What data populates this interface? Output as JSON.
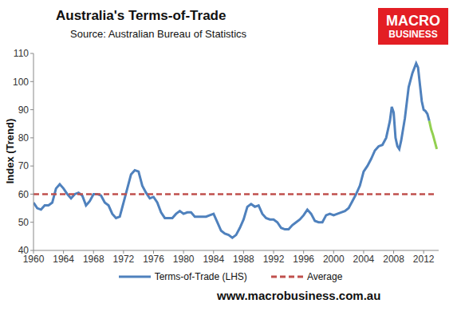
{
  "chart_data": {
    "type": "line",
    "title": "Australia's Terms-of-Trade",
    "subtitle": "Source: Australian Bureau of Statistics",
    "y_label": "Index (Trend)",
    "logo": [
      "MACRO",
      "BUSINESS"
    ],
    "footer": "www.macrobusiness.com.au",
    "xlim": [
      1960,
      2014
    ],
    "xticks": [
      1960,
      1964,
      1968,
      1972,
      1976,
      1980,
      1984,
      1988,
      1992,
      1996,
      2000,
      2004,
      2008,
      2012
    ],
    "ylim": [
      40,
      110
    ],
    "yticks": [
      40,
      50,
      60,
      70,
      80,
      90,
      100,
      110
    ],
    "grid": false,
    "legend": "bottom",
    "series": [
      {
        "name": "Terms-of-Trade (LHS)",
        "color": "#4f81bd",
        "line_style": "solid",
        "x": [
          1960,
          1960.5,
          1961,
          1961.5,
          1962,
          1962.5,
          1963,
          1963.5,
          1964,
          1964.5,
          1965,
          1965.5,
          1966,
          1966.5,
          1967,
          1967.5,
          1968,
          1968.5,
          1969,
          1969.5,
          1970,
          1970.5,
          1971,
          1971.5,
          1972,
          1972.5,
          1973,
          1973.5,
          1974,
          1974.5,
          1975,
          1975.5,
          1976,
          1976.5,
          1977,
          1977.5,
          1978,
          1978.5,
          1979,
          1979.5,
          1980,
          1980.5,
          1981,
          1981.5,
          1982,
          1982.5,
          1983,
          1983.5,
          1984,
          1984.5,
          1985,
          1985.5,
          1986,
          1986.5,
          1987,
          1987.5,
          1988,
          1988.5,
          1989,
          1989.5,
          1990,
          1990.5,
          1991,
          1991.5,
          1992,
          1992.5,
          1993,
          1993.5,
          1994,
          1994.5,
          1995,
          1995.5,
          1996,
          1996.5,
          1997,
          1997.5,
          1998,
          1998.5,
          1999,
          1999.5,
          2000,
          2000.5,
          2001,
          2001.5,
          2002,
          2002.5,
          2003,
          2003.5,
          2004,
          2004.5,
          2005,
          2005.5,
          2006,
          2006.5,
          2007,
          2007.5,
          2007.75,
          2008,
          2008.25,
          2008.5,
          2008.75,
          2009,
          2009.5,
          2010,
          2010.5,
          2011,
          2011.25,
          2011.5,
          2011.75,
          2012,
          2012.25,
          2012.5,
          2012.75
        ],
        "values": [
          57,
          55,
          54.5,
          56,
          56,
          57,
          62,
          63.5,
          62,
          60,
          58.5,
          60,
          60.5,
          59.5,
          56,
          57.5,
          60,
          60,
          59.5,
          57,
          56,
          53,
          51.5,
          52,
          57,
          62,
          67,
          68.5,
          68,
          63,
          60.5,
          58.5,
          59,
          57,
          53.5,
          51.5,
          51.5,
          51.5,
          53,
          54,
          53,
          53.5,
          53.5,
          52,
          52,
          52,
          52,
          52.5,
          53,
          50,
          47,
          46,
          45.5,
          44.5,
          45.5,
          48,
          51,
          55.5,
          56.5,
          55.5,
          56,
          53,
          51.5,
          51,
          51,
          50,
          48,
          47.5,
          47.5,
          49,
          50,
          51,
          52.5,
          54.5,
          53,
          50.5,
          50,
          50,
          52.5,
          53,
          52.5,
          53,
          53.5,
          54,
          55,
          57.5,
          60,
          63,
          68,
          70,
          72.5,
          75.5,
          77,
          77.5,
          80,
          86,
          91,
          89,
          80,
          77,
          76,
          79,
          87,
          98,
          103,
          106.5,
          105,
          99,
          93,
          90,
          89.5,
          88.5,
          86
        ]
      },
      {
        "color": "#92d050",
        "line_style": "solid",
        "x": [
          2012.75,
          2013,
          2013.25,
          2013.5,
          2013.75
        ],
        "values": [
          86,
          83,
          81,
          78.5,
          76
        ]
      },
      {
        "name": "Average",
        "color": "#c0504d",
        "line_style": "dashed",
        "x": [
          1960,
          2013.75
        ],
        "values": [
          60,
          60
        ]
      }
    ]
  }
}
